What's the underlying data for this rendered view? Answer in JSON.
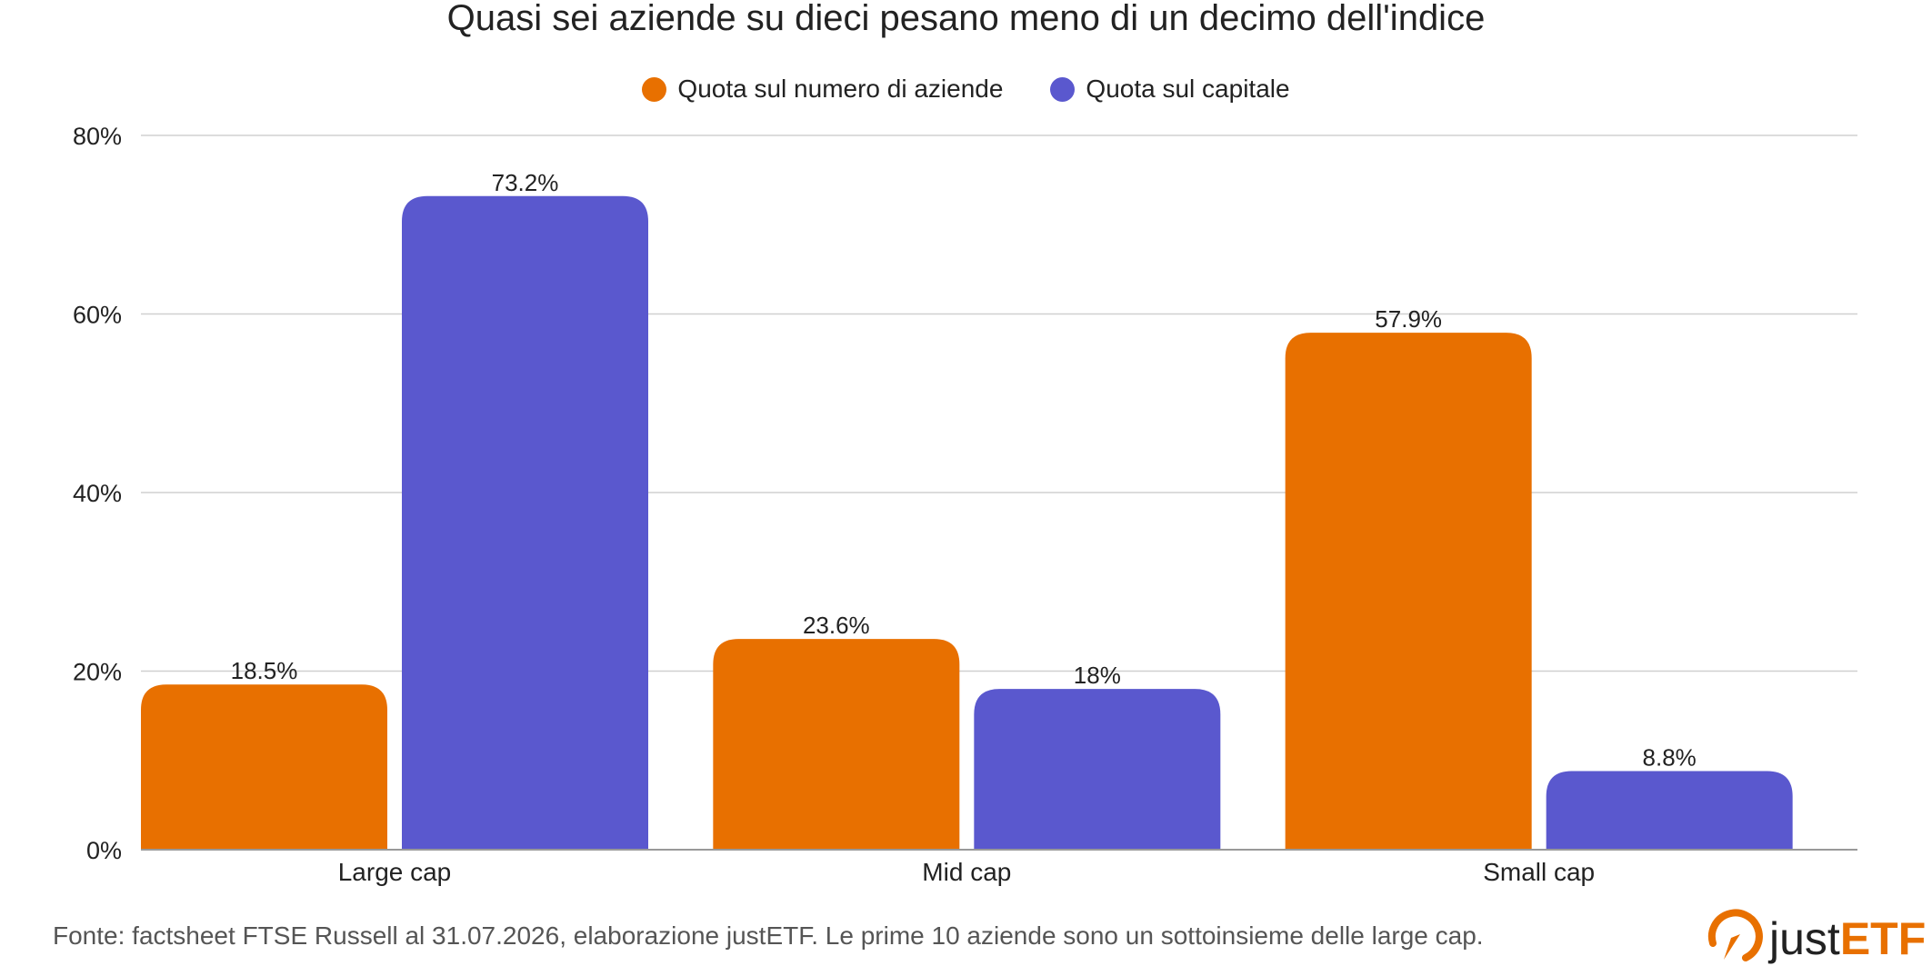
{
  "colors": {
    "series1": "#E87000",
    "series2": "#5A58CE",
    "grid": "#D0D0D0",
    "axis": "#999999",
    "text": "#222222"
  },
  "source_note": "Fonte: factsheet FTSE Russell al 31.07.2026, elaborazione justETF. Le prime 10 aziende sono un sottoinsieme delle large cap.",
  "logo": {
    "text_part1": "just",
    "text_part2": "ETF",
    "icon": "justetf-logo-icon"
  },
  "chart_data": {
    "type": "bar",
    "title": "Quasi sei aziende su dieci pesano meno di un decimo dell'indice",
    "categories": [
      "Large cap",
      "Mid cap",
      "Small cap"
    ],
    "series": [
      {
        "name": "Quota sul numero di aziende",
        "values": [
          18.5,
          23.6,
          57.9
        ],
        "labels": [
          "18.5%",
          "23.6%",
          "57.9%"
        ]
      },
      {
        "name": "Quota sul capitale",
        "values": [
          73.2,
          18,
          8.8
        ],
        "labels": [
          "73.2%",
          "18%",
          "8.8%"
        ]
      }
    ],
    "ylim": [
      0,
      80
    ],
    "yticks": [
      0,
      20,
      40,
      60,
      80
    ],
    "ytick_labels": [
      "0%",
      "20%",
      "40%",
      "60%",
      "80%"
    ],
    "xlabel": "",
    "ylabel": "",
    "grid": true,
    "legend": "top-center"
  }
}
